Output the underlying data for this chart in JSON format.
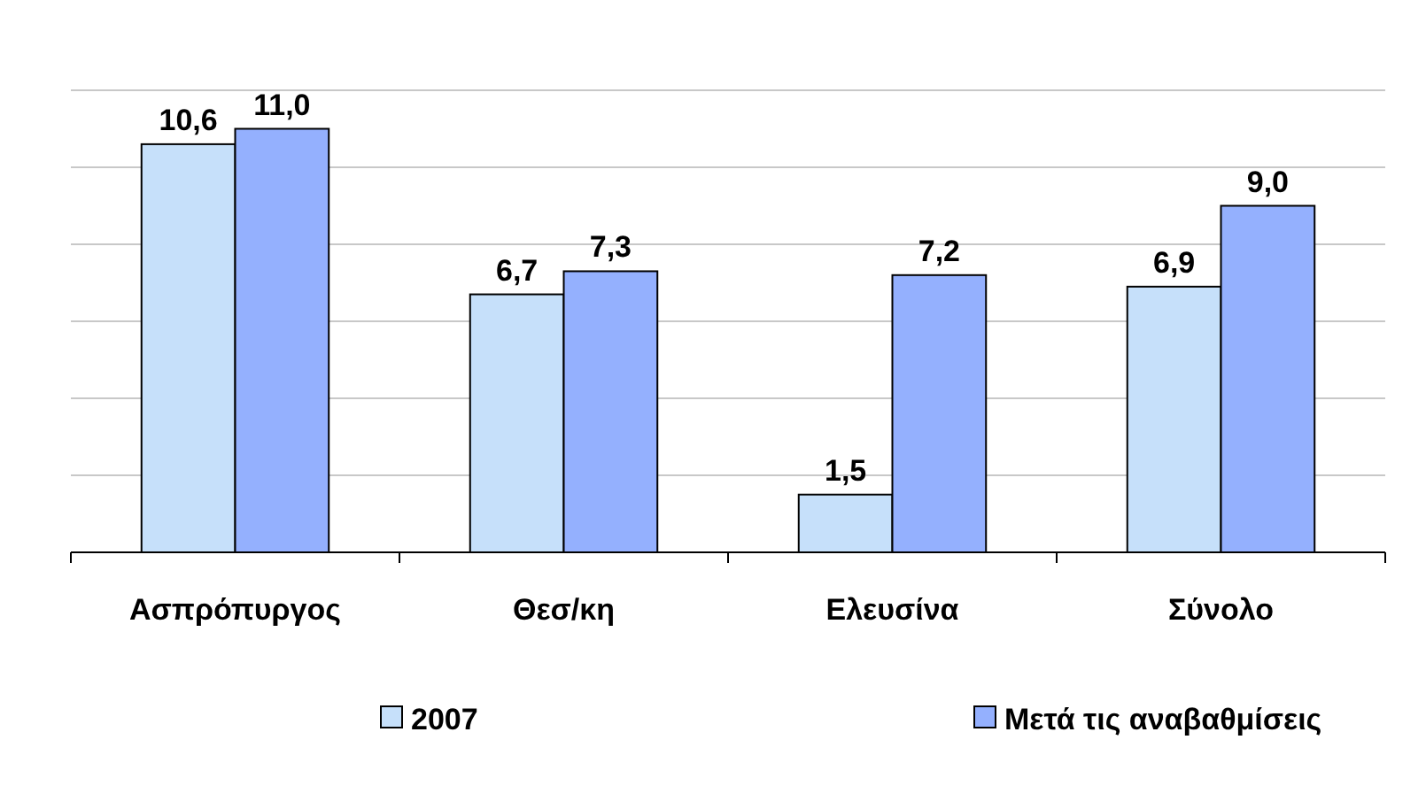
{
  "chart_data": {
    "type": "bar",
    "categories": [
      "Ασπρόπυργος",
      "Θεσ/κη",
      "Ελευσίνα",
      "Σύνολο"
    ],
    "series": [
      {
        "name": "2007",
        "color": "#c6e0fa",
        "values": [
          10.6,
          6.7,
          1.5,
          6.9
        ],
        "value_labels": [
          "10,6",
          "6,7",
          "1,5",
          "6,9"
        ]
      },
      {
        "name": "Μετά τις αναβαθμίσεις",
        "color": "#94b0fe",
        "values": [
          11.0,
          7.3,
          7.2,
          9.0
        ],
        "value_labels": [
          "11,0",
          "7,3",
          "7,2",
          "9,0"
        ]
      }
    ],
    "grid": "y",
    "tick_labels": "x",
    "legend": "bottom"
  }
}
